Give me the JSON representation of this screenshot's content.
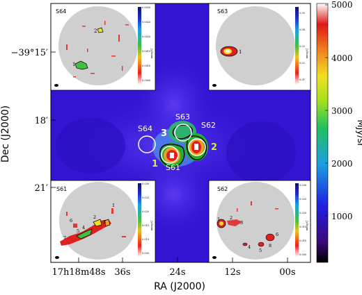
{
  "figure": {
    "y_axis_label": "Dec (J2000)",
    "x_axis_label": "RA (J2000)",
    "x_ticks": [
      "17h18m48s",
      "36s",
      "24s",
      "12s",
      "00s"
    ],
    "y_ticks": [
      "−39°15′",
      "18′",
      "21′"
    ],
    "colorbar": {
      "unit": "MJy/sr",
      "ticks": [
        "5000",
        "4000",
        "3000",
        "2000",
        "1000"
      ],
      "range": [
        0,
        5000
      ]
    },
    "map_labels": {
      "s61": "S61",
      "s62": "S62",
      "s63": "S63",
      "s64": "S64",
      "c1": "1",
      "c2": "2",
      "c3": "3"
    }
  },
  "insets": {
    "s64": {
      "title": "S64",
      "clump_labels": [
        "1",
        "2"
      ],
      "cbar_ticks": [
        "0.0030",
        "0.0025",
        "0.0020",
        "0.0015",
        "0.0010",
        "0.0005"
      ],
      "cbar_label": "Jy/beam"
    },
    "s63": {
      "title": "S63",
      "clump_labels": [
        "1"
      ],
      "cbar_ticks": [
        "0.05",
        "0.04",
        "0.03",
        "0.02",
        "0.01"
      ],
      "cbar_label": "Jy/beam"
    },
    "s61": {
      "title": "S61",
      "clump_labels": [
        "1",
        "2",
        "3",
        "4",
        "5",
        "6",
        "7"
      ],
      "cbar_ticks": [
        "0.030",
        "0.025",
        "0.020",
        "0.015",
        "0.010",
        "0.005"
      ],
      "cbar_label": "Jy/beam"
    },
    "s62": {
      "title": "S62",
      "clump_labels": [
        "1",
        "2",
        "3",
        "4",
        "5",
        "6",
        "8"
      ],
      "cbar_ticks": [
        "0.030",
        "0.025",
        "0.020",
        "0.015",
        "0.010",
        "0.005"
      ],
      "cbar_label": "Jy/beam"
    }
  },
  "colors": {
    "background": "#3a1ad8",
    "deep": "#2a10c8",
    "peak": "#ff3a2a",
    "inset_disk": "#d0d0d0"
  }
}
